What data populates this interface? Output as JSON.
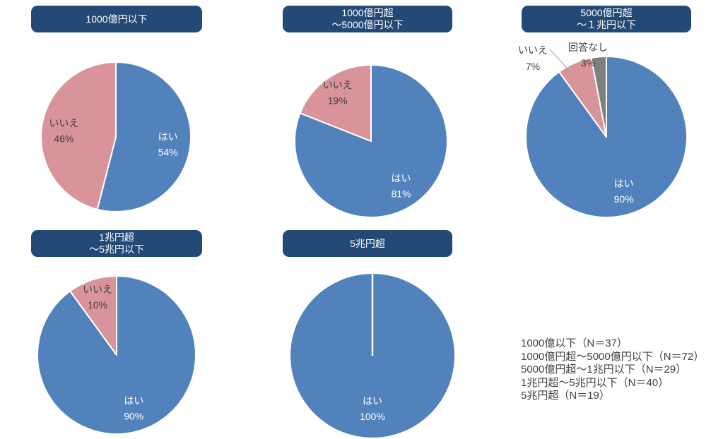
{
  "colors": {
    "yes_blue": "#5282BC",
    "no_pink": "#D8949A",
    "no_answer_gray": "#7F7F7F",
    "header_bg": "#234A76",
    "header_text": "#FFFFFF",
    "label_on_blue": "#FFFFFF",
    "label_dark": "#404040",
    "leader_line": "#A6A6A6",
    "note_text": "#3F3F3F",
    "background": "#FFFFFF"
  },
  "chart_data": [
    {
      "type": "pie",
      "title": "1000億円以下",
      "slices": [
        {
          "label": "はい",
          "value": 54,
          "color": "#5282BC",
          "label_color": "#FFFFFF"
        },
        {
          "label": "いいえ",
          "value": 46,
          "color": "#D8949A",
          "label_color": "#404040"
        }
      ]
    },
    {
      "type": "pie",
      "title": "1000億円超\n～5000億円以下",
      "slices": [
        {
          "label": "はい",
          "value": 81,
          "color": "#5282BC",
          "label_color": "#FFFFFF"
        },
        {
          "label": "いいえ",
          "value": 19,
          "color": "#D8949A",
          "label_color": "#404040"
        }
      ]
    },
    {
      "type": "pie",
      "title": "5000億円超\n～１兆円以下",
      "slices": [
        {
          "label": "はい",
          "value": 90,
          "color": "#5282BC",
          "label_color": "#FFFFFF"
        },
        {
          "label": "いいえ",
          "value": 7,
          "color": "#D8949A",
          "label_color": "#404040"
        },
        {
          "label": "回答なし",
          "value": 3,
          "color": "#7F7F7F",
          "label_color": "#404040"
        }
      ]
    },
    {
      "type": "pie",
      "title": "1兆円超\n～5兆円以下",
      "slices": [
        {
          "label": "はい",
          "value": 90,
          "color": "#5282BC",
          "label_color": "#FFFFFF"
        },
        {
          "label": "いいえ",
          "value": 10,
          "color": "#D8949A",
          "label_color": "#404040"
        }
      ]
    },
    {
      "type": "pie",
      "title": "5兆円超",
      "slices": [
        {
          "label": "はい",
          "value": 100,
          "color": "#5282BC",
          "label_color": "#FFFFFF"
        }
      ]
    }
  ],
  "note": {
    "lines": [
      "1000億以下（N＝37）",
      "1000億円超～5000億円以下（N＝72）",
      "5000億円超～1兆円以下（N＝29）",
      "1兆円超～5兆円以下（N＝40）",
      "5兆円超（N＝19）"
    ]
  }
}
